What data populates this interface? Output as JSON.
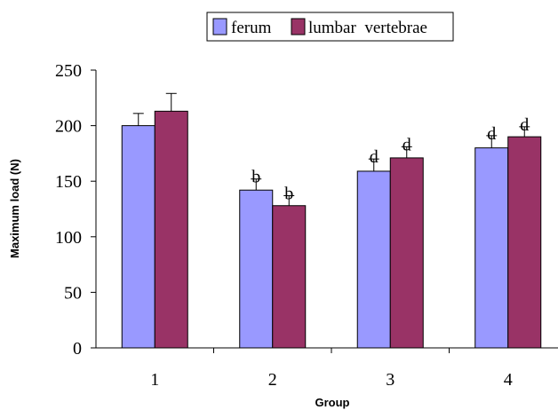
{
  "chart_data": {
    "type": "bar",
    "title": "",
    "xlabel": "Group",
    "ylabel": "Maximum load (N)",
    "ylim": [
      0,
      250
    ],
    "yticks": [
      "0",
      "50",
      "100",
      "150",
      "200",
      "250"
    ],
    "categories": [
      "1",
      "2",
      "3",
      "4"
    ],
    "series": [
      {
        "name": "ferum",
        "values": [
          200,
          142,
          159,
          180
        ],
        "errors": [
          11,
          10,
          11,
          11
        ],
        "labels": [
          "",
          "b",
          "d",
          "d"
        ],
        "color": "#9999FF"
      },
      {
        "name": "lumbar  vertebrae",
        "values": [
          213,
          128,
          171,
          190
        ],
        "errors": [
          16,
          9,
          10,
          9
        ],
        "labels": [
          "",
          "b",
          "d",
          "d"
        ],
        "color": "#993366"
      }
    ],
    "legend_position": "top-center",
    "grid": false
  }
}
